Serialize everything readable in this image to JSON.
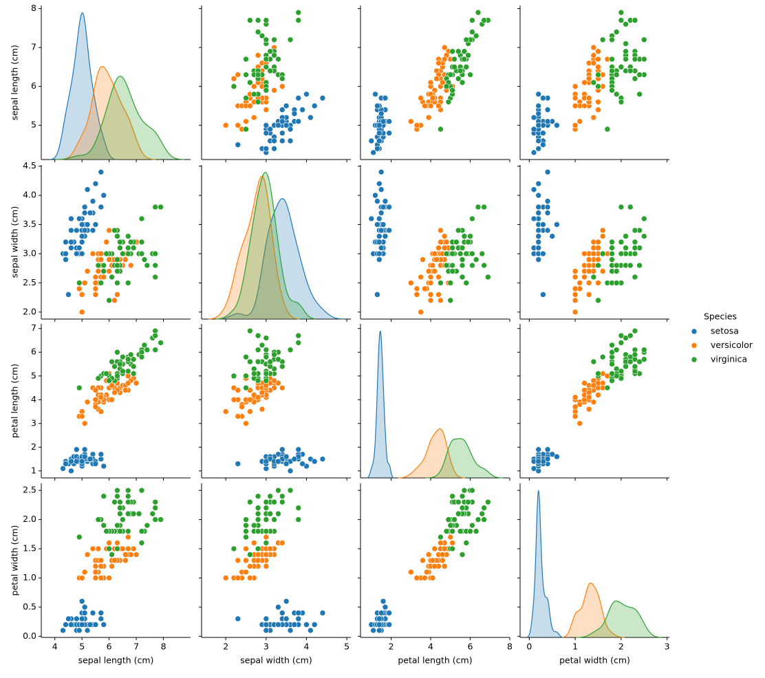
{
  "chart_data": {
    "type": "pairplot",
    "legend": "right",
    "legend_title": "Species",
    "variables": [
      {
        "label": "sepal length (cm)",
        "xlim": [
          3.5,
          9.0
        ],
        "xticks": [
          4,
          5,
          6,
          7,
          8
        ],
        "ylim": [
          4.12,
          8.08
        ],
        "yticks": [
          5,
          6,
          7,
          8
        ]
      },
      {
        "label": "sepal width (cm)",
        "xlim": [
          1.4,
          5.1
        ],
        "xticks": [
          2,
          3,
          4,
          5
        ],
        "ylim": [
          1.88,
          4.52
        ],
        "yticks": [
          {
            "value": 2,
            "label": "2.0"
          },
          2.5,
          {
            "value": 3,
            "label": "3.0"
          },
          3.5,
          {
            "value": 4,
            "label": "4.0"
          },
          4.5
        ]
      },
      {
        "label": "petal length (cm)",
        "xlim": [
          0.45,
          8.0
        ],
        "xticks": [
          2,
          4,
          6,
          8
        ],
        "ylim": [
          0.705,
          7.195
        ],
        "yticks": [
          1,
          2,
          3,
          4,
          5,
          6,
          7
        ]
      },
      {
        "label": "petal width (cm)",
        "xlim": [
          -0.2,
          3.05
        ],
        "xticks": [
          0,
          1,
          2,
          3
        ],
        "ylim": [
          -0.02,
          2.62
        ],
        "yticks": [
          {
            "value": 0,
            "label": "0.0"
          },
          0.5,
          {
            "value": 1,
            "label": "1.0"
          },
          1.5,
          {
            "value": 2,
            "label": "2.0"
          },
          2.5
        ]
      }
    ],
    "series": [
      {
        "name": "setosa",
        "color": "#1f77b4",
        "values": [
          [
            5.1,
            4.9,
            4.7,
            4.6,
            5.0,
            5.4,
            4.6,
            5.0,
            4.4,
            4.9,
            5.4,
            4.8,
            4.8,
            4.3,
            5.8,
            5.7,
            5.4,
            5.1,
            5.7,
            5.1,
            5.4,
            5.1,
            4.6,
            5.1,
            4.8,
            5.0,
            5.0,
            5.2,
            5.2,
            4.7,
            4.8,
            5.4,
            5.2,
            5.5,
            4.9,
            5.0,
            5.5,
            4.9,
            4.4,
            5.1,
            5.0,
            4.5,
            4.4,
            5.0,
            5.1,
            4.8,
            5.1,
            4.6,
            5.3,
            5.0
          ],
          [
            3.5,
            3.0,
            3.2,
            3.1,
            3.6,
            3.9,
            3.4,
            3.4,
            2.9,
            3.1,
            3.7,
            3.4,
            3.0,
            3.0,
            4.0,
            4.4,
            3.9,
            3.5,
            3.8,
            3.8,
            3.4,
            3.7,
            3.6,
            3.3,
            3.4,
            3.0,
            3.4,
            3.5,
            3.4,
            3.2,
            3.1,
            3.4,
            4.1,
            4.2,
            3.1,
            3.2,
            3.5,
            3.6,
            3.0,
            3.4,
            3.5,
            2.3,
            3.2,
            3.5,
            3.8,
            3.0,
            3.8,
            3.2,
            3.7,
            3.3
          ],
          [
            1.4,
            1.4,
            1.3,
            1.5,
            1.4,
            1.7,
            1.4,
            1.5,
            1.4,
            1.5,
            1.5,
            1.6,
            1.4,
            1.1,
            1.2,
            1.5,
            1.3,
            1.4,
            1.7,
            1.5,
            1.7,
            1.5,
            1.0,
            1.7,
            1.9,
            1.6,
            1.6,
            1.5,
            1.4,
            1.6,
            1.6,
            1.5,
            1.5,
            1.4,
            1.5,
            1.2,
            1.3,
            1.4,
            1.3,
            1.5,
            1.3,
            1.3,
            1.3,
            1.6,
            1.9,
            1.4,
            1.6,
            1.4,
            1.5,
            1.4
          ],
          [
            0.2,
            0.2,
            0.2,
            0.2,
            0.2,
            0.4,
            0.3,
            0.2,
            0.2,
            0.1,
            0.2,
            0.2,
            0.1,
            0.1,
            0.2,
            0.4,
            0.4,
            0.3,
            0.3,
            0.3,
            0.2,
            0.4,
            0.2,
            0.5,
            0.2,
            0.2,
            0.4,
            0.2,
            0.2,
            0.2,
            0.2,
            0.4,
            0.1,
            0.2,
            0.2,
            0.2,
            0.2,
            0.1,
            0.2,
            0.2,
            0.3,
            0.3,
            0.2,
            0.6,
            0.4,
            0.3,
            0.2,
            0.2,
            0.2,
            0.2
          ]
        ]
      },
      {
        "name": "versicolor",
        "color": "#ff7f0e",
        "values": [
          [
            7.0,
            6.4,
            6.9,
            5.5,
            6.5,
            5.7,
            6.3,
            4.9,
            6.6,
            5.2,
            5.0,
            5.9,
            6.0,
            6.1,
            5.6,
            6.7,
            5.6,
            5.8,
            6.2,
            5.6,
            5.9,
            6.1,
            6.3,
            6.1,
            6.4,
            6.6,
            6.8,
            6.7,
            6.0,
            5.7,
            5.5,
            5.5,
            5.8,
            6.0,
            5.4,
            6.0,
            6.7,
            6.3,
            5.6,
            5.5,
            5.5,
            6.1,
            5.8,
            5.0,
            5.6,
            5.7,
            5.7,
            6.2,
            5.1,
            5.7
          ],
          [
            3.2,
            3.2,
            3.1,
            2.3,
            2.8,
            2.8,
            3.3,
            2.4,
            2.9,
            2.7,
            2.0,
            3.0,
            2.2,
            2.9,
            2.9,
            3.1,
            3.0,
            2.7,
            2.2,
            2.5,
            3.2,
            2.8,
            2.5,
            2.8,
            2.9,
            3.0,
            2.8,
            3.0,
            2.9,
            2.6,
            2.4,
            2.4,
            2.7,
            2.7,
            3.0,
            3.4,
            3.1,
            2.3,
            3.0,
            2.5,
            2.6,
            3.0,
            2.6,
            2.3,
            2.7,
            3.0,
            2.9,
            2.9,
            2.5,
            2.8
          ],
          [
            4.7,
            4.5,
            4.9,
            4.0,
            4.6,
            4.5,
            4.7,
            3.3,
            4.6,
            3.9,
            3.5,
            4.2,
            4.0,
            4.7,
            3.6,
            4.4,
            4.5,
            4.1,
            4.5,
            3.9,
            4.8,
            4.0,
            4.9,
            4.7,
            4.3,
            4.4,
            4.8,
            5.0,
            4.5,
            3.5,
            3.8,
            3.7,
            3.9,
            5.1,
            4.5,
            4.5,
            4.7,
            4.4,
            4.1,
            4.0,
            4.4,
            4.6,
            4.0,
            3.3,
            4.2,
            4.2,
            4.2,
            4.3,
            3.0,
            4.1
          ],
          [
            1.4,
            1.5,
            1.5,
            1.3,
            1.5,
            1.3,
            1.6,
            1.0,
            1.3,
            1.4,
            1.0,
            1.5,
            1.0,
            1.4,
            1.3,
            1.4,
            1.5,
            1.0,
            1.5,
            1.1,
            1.8,
            1.3,
            1.5,
            1.2,
            1.3,
            1.4,
            1.4,
            1.7,
            1.5,
            1.0,
            1.1,
            1.0,
            1.2,
            1.6,
            1.5,
            1.6,
            1.5,
            1.3,
            1.3,
            1.3,
            1.2,
            1.4,
            1.2,
            1.0,
            1.3,
            1.2,
            1.3,
            1.3,
            1.1,
            1.3
          ]
        ]
      },
      {
        "name": "virginica",
        "color": "#2ca02c",
        "values": [
          [
            6.3,
            5.8,
            7.1,
            6.3,
            6.5,
            7.6,
            4.9,
            7.3,
            6.7,
            7.2,
            6.5,
            6.4,
            6.8,
            5.7,
            5.8,
            6.4,
            6.5,
            7.7,
            7.7,
            6.0,
            6.9,
            5.6,
            7.7,
            6.3,
            6.7,
            7.2,
            6.2,
            6.1,
            6.4,
            7.2,
            7.4,
            7.9,
            6.4,
            6.3,
            6.1,
            7.7,
            6.3,
            6.4,
            6.0,
            6.9,
            6.7,
            6.9,
            5.8,
            6.8,
            6.7,
            6.7,
            6.3,
            6.5,
            6.2,
            5.9
          ],
          [
            3.3,
            2.7,
            3.0,
            2.9,
            3.0,
            3.0,
            2.5,
            2.9,
            2.5,
            3.6,
            3.2,
            2.7,
            3.0,
            2.5,
            2.8,
            3.2,
            3.0,
            3.8,
            2.6,
            2.2,
            3.2,
            2.8,
            2.8,
            2.7,
            3.3,
            3.2,
            2.8,
            3.0,
            2.8,
            3.0,
            2.8,
            3.8,
            2.8,
            2.8,
            2.6,
            3.0,
            3.4,
            3.1,
            3.0,
            3.1,
            3.1,
            3.1,
            2.7,
            3.2,
            3.3,
            3.0,
            2.5,
            3.0,
            3.4,
            3.0
          ],
          [
            6.0,
            5.1,
            5.9,
            5.6,
            5.8,
            6.6,
            4.5,
            6.3,
            5.8,
            6.1,
            5.1,
            5.3,
            5.5,
            5.0,
            5.1,
            5.3,
            5.5,
            6.7,
            6.9,
            5.0,
            5.7,
            4.9,
            6.7,
            4.9,
            5.7,
            6.0,
            4.8,
            4.9,
            5.6,
            5.8,
            6.1,
            6.4,
            5.6,
            5.1,
            5.6,
            6.1,
            5.6,
            5.5,
            4.8,
            5.4,
            5.6,
            5.1,
            5.1,
            5.9,
            5.7,
            5.2,
            5.0,
            5.2,
            5.4,
            5.1
          ],
          [
            2.5,
            1.9,
            2.1,
            1.8,
            2.2,
            2.1,
            1.7,
            1.8,
            1.8,
            2.5,
            2.0,
            1.9,
            2.1,
            2.0,
            2.4,
            2.3,
            1.8,
            2.2,
            2.3,
            1.5,
            2.3,
            2.0,
            2.0,
            1.8,
            2.1,
            1.8,
            1.8,
            1.8,
            2.1,
            1.6,
            1.9,
            2.0,
            2.2,
            1.5,
            1.4,
            2.3,
            2.4,
            1.8,
            1.8,
            2.1,
            2.4,
            2.3,
            1.9,
            2.3,
            2.5,
            2.3,
            1.9,
            2.0,
            2.3,
            1.8
          ]
        ]
      }
    ]
  }
}
